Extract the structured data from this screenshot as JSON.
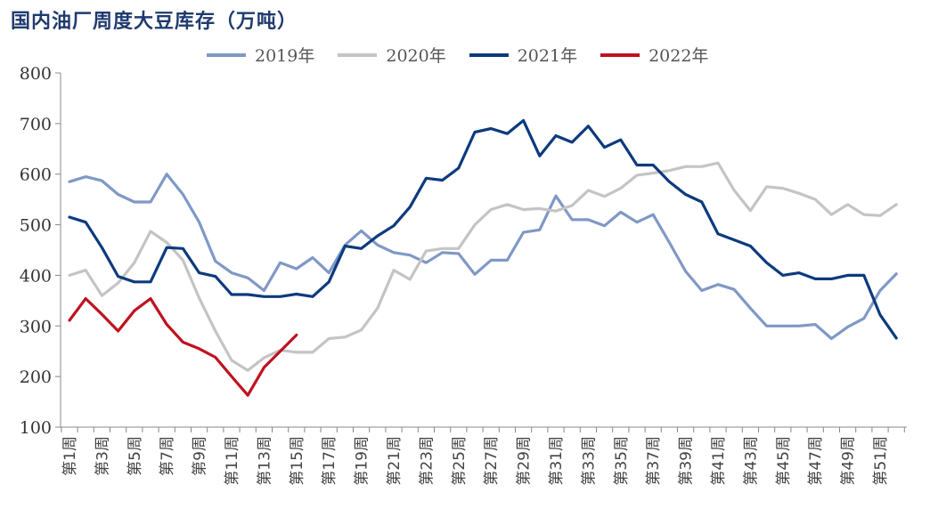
{
  "title": "国内油厂周度大豆库存（万吨）",
  "chart_data": {
    "type": "line",
    "title": "国内油厂周度大豆库存（万吨）",
    "ylim": [
      100,
      800
    ],
    "yticks": [
      100,
      200,
      300,
      400,
      500,
      600,
      700,
      800
    ],
    "x_tick_labels": [
      "第1周",
      "第3周",
      "第5周",
      "第7周",
      "第9周",
      "第11周",
      "第13周",
      "第15周",
      "第17周",
      "第19周",
      "第21周",
      "第23周",
      "第25周",
      "第27周",
      "第29周",
      "第31周",
      "第33周",
      "第35周",
      "第37周",
      "第39周",
      "第41周",
      "第43周",
      "第45周",
      "第47周",
      "第49周",
      "第51周"
    ],
    "x_tick_weeks": [
      1,
      3,
      5,
      7,
      9,
      11,
      13,
      15,
      17,
      19,
      21,
      23,
      25,
      27,
      29,
      31,
      33,
      35,
      37,
      39,
      41,
      43,
      45,
      47,
      49,
      51
    ],
    "legend_position": "top",
    "grid": false,
    "series": [
      {
        "name": "2019年",
        "color": "#7f98c6",
        "x": [
          1,
          2,
          3,
          4,
          5,
          6,
          7,
          8,
          9,
          10,
          11,
          12,
          13,
          14,
          15,
          16,
          17,
          18,
          19,
          20,
          21,
          22,
          23,
          24,
          25,
          26,
          27,
          28,
          29,
          30,
          31,
          32,
          33,
          34,
          35,
          36,
          37,
          38,
          39,
          40,
          41,
          42,
          43,
          44,
          45,
          46,
          47,
          48,
          49,
          50,
          51,
          52
        ],
        "values": [
          585,
          595,
          587,
          560,
          545,
          545,
          600,
          560,
          505,
          428,
          405,
          395,
          370,
          425,
          413,
          435,
          405,
          460,
          488,
          460,
          445,
          440,
          425,
          445,
          443,
          402,
          430,
          430,
          485,
          490,
          557,
          510,
          510,
          498,
          525,
          505,
          520,
          465,
          408,
          370,
          382,
          372,
          335,
          300,
          300,
          300,
          303,
          275,
          298,
          315,
          370,
          403
        ]
      },
      {
        "name": "2020年",
        "color": "#c4c4c4",
        "x": [
          1,
          2,
          3,
          4,
          5,
          6,
          7,
          8,
          9,
          10,
          11,
          12,
          13,
          14,
          15,
          16,
          17,
          18,
          19,
          20,
          21,
          22,
          23,
          24,
          25,
          26,
          27,
          28,
          29,
          30,
          31,
          32,
          33,
          34,
          35,
          36,
          37,
          38,
          39,
          40,
          41,
          42,
          43,
          44,
          45,
          46,
          47,
          48,
          49,
          50,
          51,
          52
        ],
        "values": [
          400,
          410,
          360,
          385,
          425,
          487,
          465,
          430,
          355,
          290,
          232,
          212,
          237,
          252,
          248,
          248,
          275,
          278,
          292,
          335,
          410,
          392,
          448,
          453,
          453,
          500,
          530,
          540,
          530,
          532,
          527,
          538,
          568,
          556,
          572,
          598,
          602,
          607,
          615,
          615,
          622,
          568,
          528,
          575,
          572,
          562,
          550,
          520,
          540,
          520,
          518,
          540
        ]
      },
      {
        "name": "2021年",
        "color": "#0d3a7e",
        "x": [
          1,
          2,
          3,
          4,
          5,
          6,
          7,
          8,
          9,
          10,
          11,
          12,
          13,
          14,
          15,
          16,
          17,
          18,
          19,
          20,
          21,
          22,
          23,
          24,
          25,
          26,
          27,
          28,
          29,
          30,
          31,
          32,
          33,
          34,
          35,
          36,
          37,
          38,
          39,
          40,
          41,
          42,
          43,
          44,
          45,
          46,
          47,
          48,
          49,
          50,
          51,
          52
        ],
        "values": [
          515,
          505,
          455,
          398,
          387,
          387,
          455,
          453,
          405,
          398,
          362,
          362,
          358,
          358,
          363,
          358,
          387,
          458,
          453,
          478,
          498,
          535,
          592,
          588,
          612,
          683,
          690,
          680,
          706,
          636,
          676,
          663,
          695,
          653,
          668,
          618,
          618,
          585,
          560,
          545,
          482,
          470,
          458,
          425,
          400,
          405,
          393,
          393,
          400,
          400,
          322,
          276
        ]
      },
      {
        "name": "2022年",
        "color": "#c0111f",
        "x": [
          1,
          2,
          3,
          4,
          5,
          6,
          7,
          8,
          9,
          10,
          11,
          12,
          13,
          14,
          15
        ],
        "values": [
          311,
          354,
          323,
          290,
          330,
          354,
          303,
          268,
          255,
          238,
          200,
          163,
          218,
          250,
          282
        ]
      }
    ]
  }
}
